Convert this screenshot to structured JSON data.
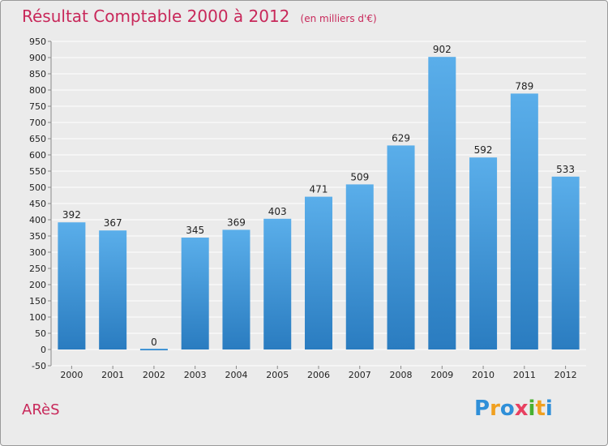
{
  "header": {
    "title": "Résultat Comptable 2000 à 2012",
    "subtitle": "(en milliers d'€)"
  },
  "footer": {
    "commune": "ARèS",
    "logo_letters": [
      "P",
      "r",
      "o",
      "x",
      "i",
      "t",
      "i"
    ],
    "logo_colors": [
      "#2f8fd8",
      "#f0a020",
      "#2f8fd8",
      "#e84060",
      "#48b030",
      "#f0a020",
      "#2f8fd8"
    ]
  },
  "colors": {
    "background": "#ebebeb",
    "bar_top": "#5aaeea",
    "bar_bottom": "#2a7cc0",
    "grid": "#ffffff",
    "text_accent": "#c8285a"
  },
  "chart_data": {
    "type": "bar",
    "title": "Résultat Comptable 2000 à 2012",
    "subtitle": "(en milliers d'€)",
    "categories": [
      "2000",
      "2001",
      "2002",
      "2003",
      "2004",
      "2005",
      "2006",
      "2007",
      "2008",
      "2009",
      "2010",
      "2011",
      "2012"
    ],
    "values": [
      392,
      367,
      0,
      345,
      369,
      403,
      471,
      509,
      629,
      902,
      592,
      789,
      533
    ],
    "ylim": [
      -50,
      950
    ],
    "yticks": [
      -50,
      0,
      50,
      100,
      150,
      200,
      250,
      300,
      350,
      400,
      450,
      500,
      550,
      600,
      650,
      700,
      750,
      800,
      850,
      900,
      950
    ],
    "grid": true,
    "legend": "none"
  }
}
